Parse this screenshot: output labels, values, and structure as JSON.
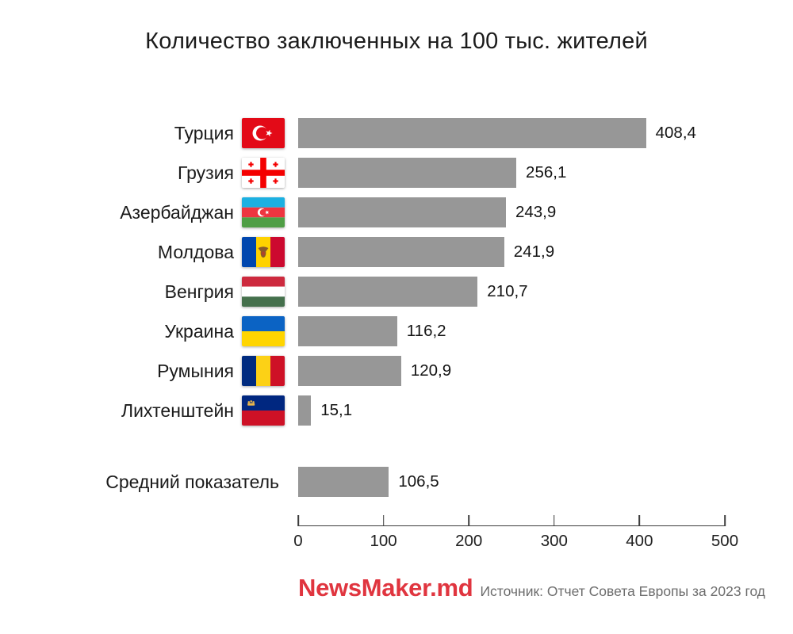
{
  "chart_data": {
    "type": "bar",
    "orientation": "horizontal",
    "title": "Количество заключенных на 100 тыс. жителей",
    "xlim": [
      0,
      500
    ],
    "xticks": [
      "0",
      "100",
      "200",
      "300",
      "400",
      "500"
    ],
    "bar_color": "#979797",
    "grid": false,
    "rows": [
      {
        "label": "Турция",
        "flag": "turkey-flag-icon",
        "value": 408.4,
        "display": "408,4"
      },
      {
        "label": "Грузия",
        "flag": "georgia-flag-icon",
        "value": 256.1,
        "display": "256,1"
      },
      {
        "label": "Азербайджан",
        "flag": "azerbaijan-flag-icon",
        "value": 243.9,
        "display": "243,9"
      },
      {
        "label": "Молдова",
        "flag": "moldova-flag-icon",
        "value": 241.9,
        "display": "241,9"
      },
      {
        "label": "Венгрия",
        "flag": "hungary-flag-icon",
        "value": 210.7,
        "display": "210,7"
      },
      {
        "label": "Украина",
        "flag": "ukraine-flag-icon",
        "value": 116.2,
        "display": "116,2"
      },
      {
        "label": "Румыния",
        "flag": "romania-flag-icon",
        "value": 120.9,
        "display": "120,9"
      },
      {
        "label": "Лихтенштейн",
        "flag": "liechtenstein-flag-icon",
        "value": 15.1,
        "display": "15,1"
      }
    ],
    "average": {
      "label": "Средний показатель",
      "value": 106.5,
      "display": "106,5"
    }
  },
  "footer": {
    "logo": "NewsMaker.md",
    "logo_color": "#e0353f",
    "source": "Источник: Отчет Совета Европы за 2023 год"
  }
}
